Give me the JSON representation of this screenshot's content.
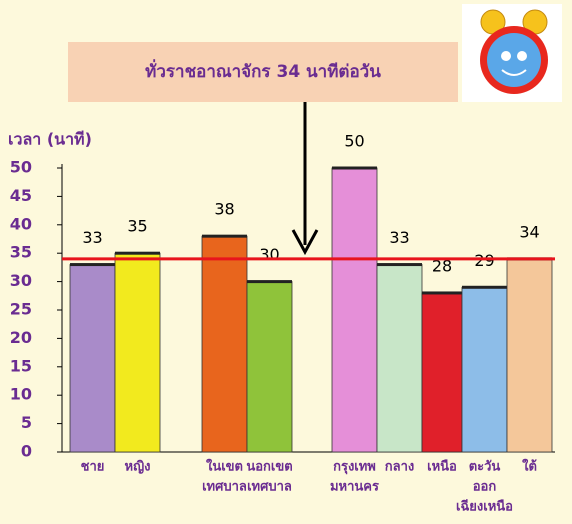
{
  "chart_data": {
    "type": "bar",
    "title": "ทั่วราชอาณาจักร 34 นาทีต่อวัน",
    "y_label": "เวลา (นาที)",
    "categories": [
      [
        "ชาย"
      ],
      [
        "หญิง"
      ],
      [
        "ในเขต",
        "เทศบาล"
      ],
      [
        "นอกเขต",
        "เทศบาล"
      ],
      [
        "กรุงเทพ",
        "มหานคร"
      ],
      [
        "กลาง"
      ],
      [
        "เหนือ"
      ],
      [
        "ตะวัน",
        "ออก",
        "เฉียงเหนือ"
      ],
      [
        "ใต้"
      ]
    ],
    "values": [
      33,
      35,
      38,
      30,
      50,
      33,
      28,
      29,
      34
    ],
    "colors": [
      "#a98bc9",
      "#f2ea1e",
      "#e8651d",
      "#8fc33a",
      "#e58fd8",
      "#c8e6c8",
      "#e0202a",
      "#8dbde8",
      "#f4c79a"
    ],
    "reference_value": 34,
    "reference_color": "#e8141c",
    "ylim": [
      0,
      50
    ],
    "yticks": [
      0,
      5,
      10,
      15,
      20,
      25,
      30,
      35,
      40,
      45,
      50
    ]
  }
}
